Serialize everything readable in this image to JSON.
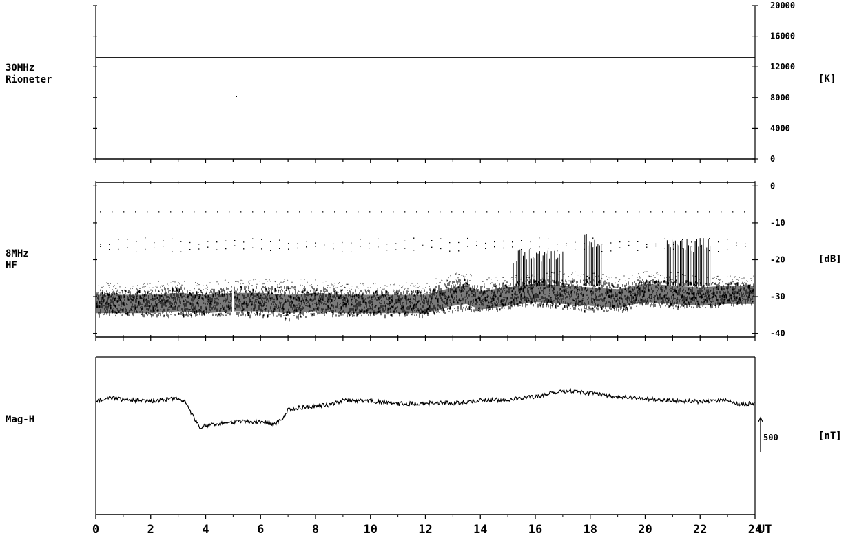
{
  "panels": [
    {
      "id": "rio",
      "name_lines": [
        "30MHz",
        "Rioneter"
      ],
      "unit": "[K]"
    },
    {
      "id": "hf",
      "name_lines": [
        "8MHz",
        "HF"
      ],
      "unit": "[dB]"
    },
    {
      "id": "mag",
      "name_lines": [
        "Mag-H"
      ],
      "unit": "[nT]"
    }
  ],
  "scale_bar_label": "500",
  "x_unit_label": "UT",
  "colors": {
    "ink": "#000000",
    "paper": "#ffffff"
  },
  "chart_data": [
    {
      "type": "line",
      "name": "30MHz Rioneter",
      "x": [
        0,
        24
      ],
      "y": [
        13200,
        13200
      ],
      "ylim": [
        0,
        20000
      ],
      "yticks": [
        0,
        4000,
        8000,
        12000,
        16000,
        20000
      ],
      "xlim": [
        0,
        24
      ],
      "ylabel": "[K]"
    },
    {
      "type": "scatter",
      "name": "8MHz HF",
      "x_hours": [
        0,
        1,
        2,
        3,
        4,
        5,
        6,
        7,
        8,
        9,
        10,
        11,
        12,
        13,
        13.5,
        14,
        15,
        16,
        17,
        18,
        19,
        20,
        21,
        22,
        23,
        24
      ],
      "band_low": [
        -35,
        -35,
        -35,
        -35,
        -35,
        -35,
        -35,
        -36,
        -35,
        -35,
        -35,
        -35,
        -35,
        -34,
        -33,
        -34,
        -33,
        -32,
        -33,
        -34,
        -34,
        -32,
        -33,
        -33,
        -32,
        -32
      ],
      "band_high": [
        -28,
        -28,
        -28,
        -27,
        -28,
        -27,
        -27,
        -27,
        -27,
        -28,
        -28,
        -28,
        -28,
        -25,
        -25,
        -27,
        -26,
        -25,
        -25,
        -25,
        -26,
        -25,
        -25,
        -26,
        -26,
        -26
      ],
      "noise_levels": [
        -7,
        -15,
        -17
      ],
      "ylim": [
        -41,
        1
      ],
      "yticks": [
        0,
        -10,
        -20,
        -30,
        -40
      ],
      "xlim": [
        0,
        24
      ],
      "ylabel": "[dB]"
    },
    {
      "type": "line",
      "name": "Mag-H",
      "x": [
        0,
        0.5,
        1.0,
        1.5,
        2.0,
        2.5,
        3.0,
        3.3,
        3.5,
        3.8,
        4.0,
        4.5,
        5.0,
        5.5,
        6.0,
        6.5,
        6.8,
        7.0,
        7.5,
        8.0,
        8.5,
        9.0,
        10.0,
        11.0,
        12.0,
        13.0,
        14.0,
        15.0,
        16.0,
        16.5,
        17.0,
        17.5,
        17.8,
        18.0,
        18.5,
        19.0,
        20.0,
        21.0,
        22.0,
        23.0,
        23.5,
        24.0
      ],
      "y": [
        0,
        60,
        30,
        20,
        10,
        30,
        60,
        -20,
        -180,
        -370,
        -340,
        -320,
        -300,
        -280,
        -300,
        -330,
        -250,
        -120,
        -80,
        -60,
        -50,
        20,
        10,
        -30,
        -20,
        -20,
        20,
        30,
        70,
        120,
        160,
        150,
        130,
        130,
        90,
        70,
        40,
        20,
        0,
        20,
        -40,
        -20
      ],
      "scale_bar_nT": 500,
      "xlim": [
        0,
        24
      ],
      "xticks": [
        0,
        2,
        4,
        6,
        8,
        10,
        12,
        14,
        16,
        18,
        20,
        22,
        24
      ],
      "ylabel": "[nT]"
    }
  ]
}
